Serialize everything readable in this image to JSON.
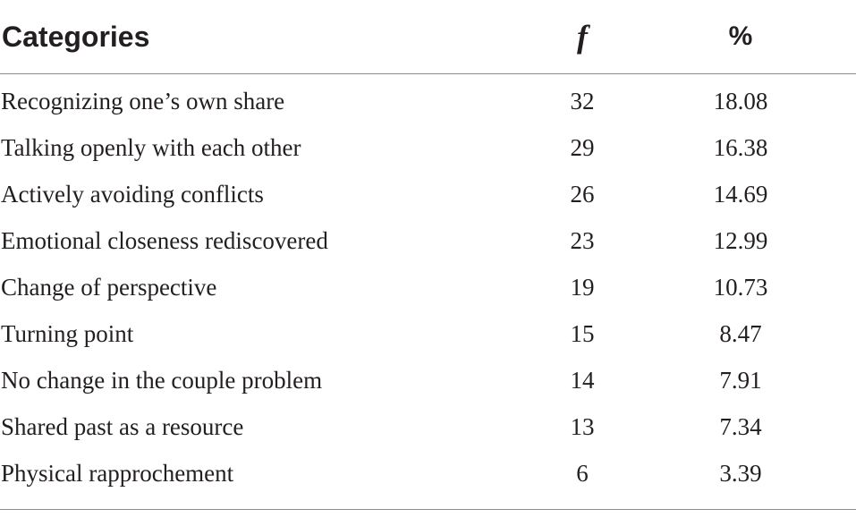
{
  "table": {
    "headers": {
      "category": "Categories",
      "frequency": "f",
      "percent": "%"
    },
    "rows": [
      {
        "category": "Recognizing one’s own share",
        "f": "32",
        "percent": "18.08"
      },
      {
        "category": "Talking openly with each other",
        "f": "29",
        "percent": "16.38"
      },
      {
        "category": "Actively avoiding conflicts",
        "f": "26",
        "percent": "14.69"
      },
      {
        "category": "Emotional closeness rediscovered",
        "f": "23",
        "percent": "12.99"
      },
      {
        "category": "Change of perspective",
        "f": "19",
        "percent": "10.73"
      },
      {
        "category": "Turning point",
        "f": "15",
        "percent": "8.47"
      },
      {
        "category": "No change in the couple problem",
        "f": "14",
        "percent": "7.91"
      },
      {
        "category": "Shared past as a resource",
        "f": "13",
        "percent": "7.34"
      },
      {
        "category": "Physical rapprochement",
        "f": "6",
        "percent": "3.39"
      }
    ]
  }
}
